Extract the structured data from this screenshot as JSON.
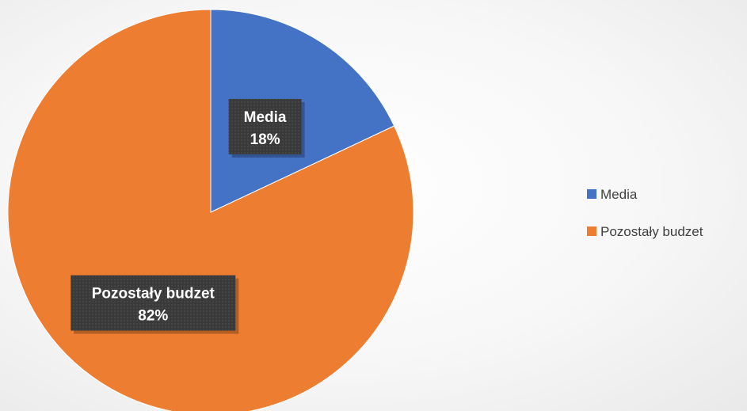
{
  "chart_data": {
    "type": "pie",
    "categories": [
      "Media",
      "Pozostały budzet"
    ],
    "values": [
      18,
      82
    ],
    "value_labels": [
      "18%",
      "82%"
    ],
    "colors": [
      "#4472C4",
      "#ED7D31"
    ],
    "legend": {
      "placement": "right",
      "entries": [
        "Media",
        "Pozostały budzet"
      ]
    }
  }
}
